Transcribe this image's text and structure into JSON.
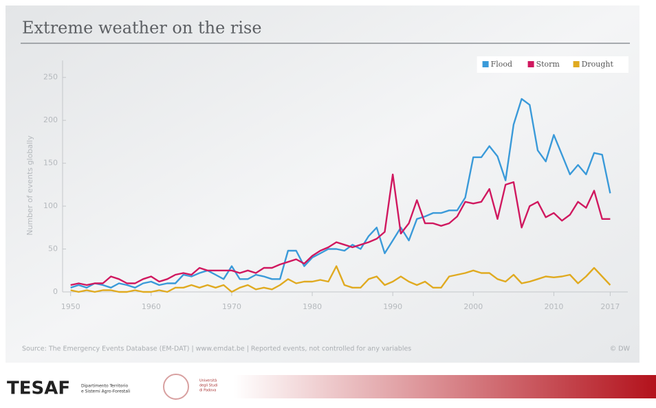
{
  "chart_data": {
    "type": "line",
    "title": "Extreme weather on the rise",
    "y_label": "Number of events globally",
    "source": "Source: The Emergency Events Database (EM-DAT) | www.emdat.be | Reported events, not controlled for any variables",
    "credit": "© DW",
    "x": [
      1950,
      1951,
      1952,
      1953,
      1954,
      1955,
      1956,
      1957,
      1958,
      1959,
      1960,
      1961,
      1962,
      1963,
      1964,
      1965,
      1966,
      1967,
      1968,
      1969,
      1970,
      1971,
      1972,
      1973,
      1974,
      1975,
      1976,
      1977,
      1978,
      1979,
      1980,
      1981,
      1982,
      1983,
      1984,
      1985,
      1986,
      1987,
      1988,
      1989,
      1990,
      1991,
      1992,
      1993,
      1994,
      1995,
      1996,
      1997,
      1998,
      1999,
      2000,
      2001,
      2002,
      2003,
      2004,
      2005,
      2006,
      2007,
      2008,
      2009,
      2010,
      2011,
      2012,
      2013,
      2014,
      2015,
      2016,
      2017
    ],
    "series": [
      {
        "name": "Flood",
        "color": "#3a9ad9",
        "values": [
          5,
          8,
          5,
          10,
          8,
          5,
          10,
          8,
          5,
          10,
          12,
          8,
          10,
          10,
          20,
          18,
          22,
          25,
          20,
          15,
          30,
          15,
          15,
          20,
          18,
          15,
          15,
          48,
          48,
          30,
          40,
          45,
          50,
          50,
          48,
          55,
          50,
          65,
          75,
          45,
          60,
          75,
          60,
          85,
          88,
          92,
          92,
          95,
          95,
          110,
          157,
          157,
          170,
          158,
          130,
          195,
          225,
          218,
          165,
          152,
          183,
          160,
          137,
          148,
          137,
          162,
          160,
          115
        ]
      },
      {
        "name": "Storm",
        "color": "#d0185f",
        "values": [
          8,
          10,
          8,
          10,
          10,
          18,
          15,
          10,
          10,
          15,
          18,
          12,
          15,
          20,
          22,
          20,
          28,
          25,
          25,
          25,
          25,
          22,
          25,
          22,
          28,
          28,
          32,
          35,
          38,
          33,
          42,
          48,
          52,
          58,
          55,
          52,
          55,
          58,
          62,
          70,
          137,
          68,
          80,
          107,
          80,
          80,
          77,
          80,
          88,
          105,
          103,
          105,
          120,
          85,
          125,
          128,
          75,
          100,
          105,
          87,
          92,
          83,
          90,
          105,
          98,
          118,
          85,
          85
        ]
      },
      {
        "name": "Drought",
        "color": "#e0aa20",
        "values": [
          2,
          0,
          2,
          0,
          2,
          2,
          0,
          0,
          2,
          0,
          0,
          2,
          0,
          5,
          5,
          8,
          5,
          8,
          5,
          8,
          0,
          5,
          8,
          3,
          5,
          3,
          8,
          15,
          10,
          12,
          12,
          14,
          12,
          30,
          8,
          5,
          5,
          15,
          18,
          8,
          12,
          18,
          12,
          8,
          12,
          5,
          5,
          18,
          20,
          22,
          25,
          22,
          22,
          15,
          12,
          20,
          10,
          12,
          15,
          18,
          17,
          18,
          20,
          10,
          18,
          28,
          18,
          8
        ]
      }
    ],
    "xlim": [
      1949,
      2018.5
    ],
    "xticks": [
      1950,
      1960,
      1970,
      1980,
      1990,
      2000,
      2010,
      2017
    ],
    "ylim": [
      0,
      265
    ],
    "yticks": [
      0,
      50,
      100,
      150,
      200,
      250
    ],
    "legend": "top-right"
  },
  "footer": {
    "logo": "TESAF",
    "department": [
      "Dipartimento Territorio",
      "e Sistemi Agro-Forestali"
    ],
    "university": [
      "Università",
      "degli Studi",
      "di Padova"
    ]
  }
}
